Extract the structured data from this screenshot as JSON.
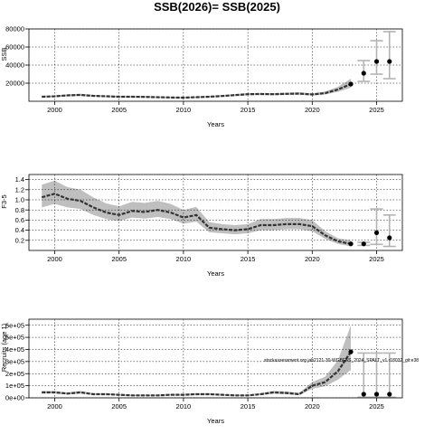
{
  "figure_title": "SSB(2026)= SSB(2025)",
  "colors": {
    "band": "#bfbfbf",
    "band_dark": "#a6a6a6",
    "line": "#333333",
    "grid": "#000000",
    "errorbar": "#b3b3b3",
    "point": "#000000"
  },
  "chart_data": [
    {
      "type": "line",
      "title": "",
      "xlabel": "Years",
      "ylabel": "SSB",
      "xlim": [
        1998,
        2027
      ],
      "ylim": [
        0,
        80000
      ],
      "x_ticks": [
        2000,
        2005,
        2010,
        2015,
        2020,
        2025
      ],
      "y_ticks": [
        20000,
        40000,
        60000,
        80000
      ],
      "y_tick_labels": [
        "20000",
        "40000",
        "60000",
        "80000"
      ],
      "grid": true,
      "years": [
        1999,
        2000,
        2001,
        2002,
        2003,
        2004,
        2005,
        2006,
        2007,
        2008,
        2009,
        2010,
        2011,
        2012,
        2013,
        2014,
        2015,
        2016,
        2017,
        2018,
        2019,
        2020,
        2021,
        2022,
        2023
      ],
      "estimate": [
        5000,
        5500,
        6500,
        7000,
        6000,
        5500,
        5000,
        5000,
        4800,
        4500,
        4200,
        4000,
        4500,
        5000,
        5800,
        6800,
        7800,
        8000,
        7800,
        8200,
        8500,
        7500,
        9000,
        13000,
        19000
      ],
      "lower": [
        4200,
        4600,
        5500,
        6000,
        5100,
        4700,
        4200,
        4200,
        4000,
        3800,
        3500,
        3400,
        3800,
        4300,
        5000,
        5900,
        6800,
        7000,
        6800,
        7100,
        7300,
        6400,
        7500,
        10500,
        15000
      ],
      "upper": [
        6000,
        6500,
        7600,
        8200,
        7000,
        6400,
        5900,
        5900,
        5700,
        5300,
        5000,
        4800,
        5300,
        5900,
        6800,
        7900,
        9000,
        9200,
        9000,
        9500,
        9900,
        8800,
        10800,
        16000,
        25000
      ],
      "projection": [
        {
          "year": 2024,
          "value": 31000,
          "lower": 22000,
          "upper": 45000
        },
        {
          "year": 2025,
          "value": 44000,
          "lower": 30000,
          "upper": 67000
        },
        {
          "year": 2026,
          "value": 44000,
          "lower": 25000,
          "upper": 77000
        }
      ]
    },
    {
      "type": "line",
      "title": "",
      "xlabel": "Years",
      "ylabel": "F3-5",
      "xlim": [
        1998,
        2027
      ],
      "ylim": [
        0,
        1.5
      ],
      "x_ticks": [
        2000,
        2005,
        2010,
        2015,
        2020,
        2025
      ],
      "y_ticks": [
        0.2,
        0.4,
        0.6,
        0.8,
        1.0,
        1.2,
        1.4
      ],
      "y_tick_labels": [
        "0.2",
        "0.4",
        "0.6",
        "0.8",
        "1.0",
        "1.2",
        "1.4"
      ],
      "grid": true,
      "years": [
        1999,
        2000,
        2001,
        2002,
        2003,
        2004,
        2005,
        2006,
        2007,
        2008,
        2009,
        2010,
        2011,
        2012,
        2013,
        2014,
        2015,
        2016,
        2017,
        2018,
        2019,
        2020,
        2021,
        2022,
        2023
      ],
      "estimate": [
        1.05,
        1.12,
        1.02,
        0.98,
        0.85,
        0.75,
        0.7,
        0.78,
        0.76,
        0.8,
        0.75,
        0.65,
        0.7,
        0.45,
        0.42,
        0.4,
        0.42,
        0.5,
        0.5,
        0.52,
        0.52,
        0.48,
        0.3,
        0.18,
        0.13
      ],
      "lower": [
        0.85,
        0.92,
        0.85,
        0.82,
        0.7,
        0.62,
        0.58,
        0.65,
        0.63,
        0.66,
        0.62,
        0.53,
        0.57,
        0.36,
        0.34,
        0.32,
        0.34,
        0.4,
        0.4,
        0.42,
        0.42,
        0.38,
        0.23,
        0.13,
        0.08
      ],
      "upper": [
        1.3,
        1.38,
        1.25,
        1.2,
        1.05,
        0.93,
        0.87,
        0.96,
        0.94,
        0.98,
        0.92,
        0.8,
        0.86,
        0.56,
        0.52,
        0.5,
        0.52,
        0.62,
        0.62,
        0.64,
        0.64,
        0.6,
        0.38,
        0.24,
        0.2
      ],
      "projection": [
        {
          "year": 2024,
          "value": 0.13,
          "lower": 0.1,
          "upper": 0.16
        },
        {
          "year": 2025,
          "value": 0.35,
          "lower": 0.12,
          "upper": 0.82
        },
        {
          "year": 2026,
          "value": 0.25,
          "lower": 0.08,
          "upper": 0.7
        }
      ]
    },
    {
      "type": "line",
      "title": "",
      "xlabel": "Years",
      "ylabel": "Recruits (age 1)",
      "xlim": [
        1998,
        2027
      ],
      "ylim": [
        0,
        650000
      ],
      "x_ticks": [
        2000,
        2005,
        2010,
        2015,
        2020,
        2025
      ],
      "y_ticks": [
        0,
        100000,
        200000,
        300000,
        400000,
        500000,
        600000
      ],
      "y_tick_labels": [
        "0e+00",
        "1e+05",
        "2e+05",
        "3e+05",
        "4e+05",
        "5e+05",
        "6e+05"
      ],
      "grid": true,
      "annotation": "stockassessment.org jab2121-30-WGBFAS_2024_SPALT_v1 r18032_git:e38",
      "years": [
        1999,
        2000,
        2001,
        2002,
        2003,
        2004,
        2005,
        2006,
        2007,
        2008,
        2009,
        2010,
        2011,
        2012,
        2013,
        2014,
        2015,
        2016,
        2017,
        2018,
        2019,
        2020,
        2021,
        2022,
        2023
      ],
      "estimate": [
        45000,
        45000,
        35000,
        45000,
        30000,
        30000,
        25000,
        20000,
        20000,
        20000,
        25000,
        25000,
        30000,
        30000,
        25000,
        20000,
        20000,
        30000,
        45000,
        40000,
        30000,
        100000,
        130000,
        220000,
        380000
      ],
      "lower": [
        36000,
        36000,
        28000,
        36000,
        24000,
        24000,
        20000,
        15000,
        15000,
        15000,
        19000,
        19000,
        23000,
        23000,
        19000,
        15000,
        15000,
        23000,
        35000,
        30000,
        22000,
        75000,
        95000,
        150000,
        230000
      ],
      "upper": [
        56000,
        56000,
        44000,
        56000,
        38000,
        38000,
        32000,
        26000,
        26000,
        26000,
        32000,
        32000,
        38000,
        38000,
        32000,
        26000,
        26000,
        38000,
        57000,
        52000,
        40000,
        130000,
        175000,
        310000,
        600000
      ],
      "projection": [
        {
          "year": 2024,
          "value": 30000,
          "lower": 5000,
          "upper": 370000
        },
        {
          "year": 2025,
          "value": 30000,
          "lower": 5000,
          "upper": 370000
        },
        {
          "year": 2026,
          "value": 30000,
          "lower": 5000,
          "upper": 370000
        }
      ]
    }
  ]
}
